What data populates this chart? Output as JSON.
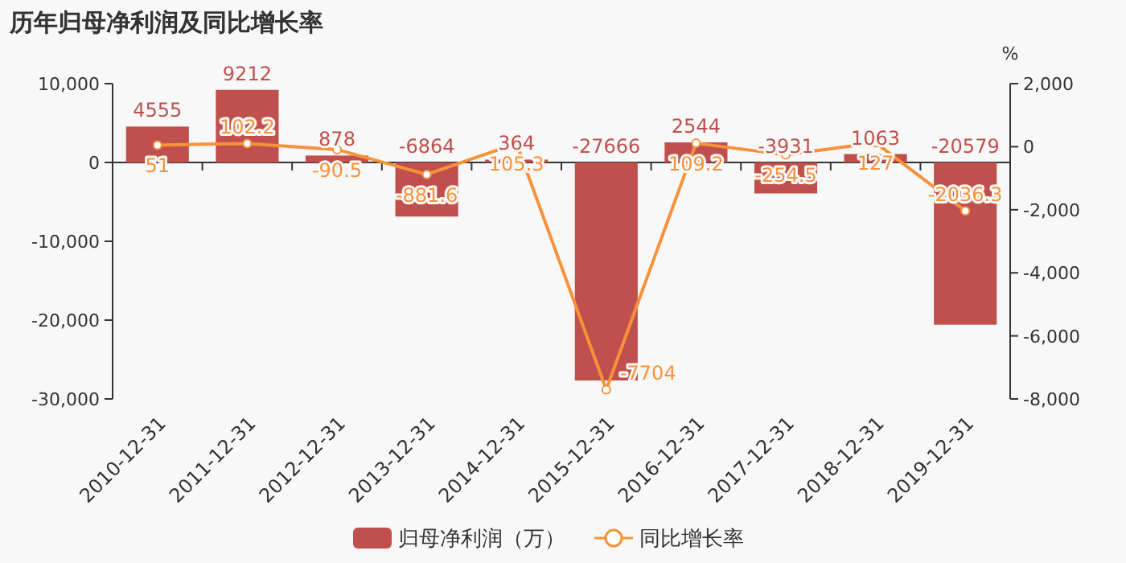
{
  "chart_data": {
    "type": "bar",
    "title": "历年归母净利润及同比增长率",
    "y2label": "%",
    "categories": [
      "2010-12-31",
      "2011-12-31",
      "2012-12-31",
      "2013-12-31",
      "2014-12-31",
      "2015-12-31",
      "2016-12-31",
      "2017-12-31",
      "2018-12-31",
      "2019-12-31"
    ],
    "series": [
      {
        "name": "归母净利润（万）",
        "color": "#c0504d",
        "values": [
          4555,
          9212,
          878,
          -6864,
          364,
          -27666,
          2544,
          -3931,
          1063,
          -20579
        ]
      },
      {
        "name": "同比增长率",
        "type": "line",
        "axis": "y2",
        "color": "#f7923a",
        "marker": "circle",
        "values": [
          51,
          102.2,
          -90.5,
          -881.6,
          105.3,
          -7704,
          109.2,
          -254.5,
          127,
          -2036.3
        ]
      }
    ],
    "ylim": [
      -30000,
      10000
    ],
    "yticks": [
      {
        "value": -30000,
        "label": "-30,000"
      },
      {
        "value": -20000,
        "label": "-20,000"
      },
      {
        "value": -10000,
        "label": "-10,000"
      },
      0,
      {
        "value": 10000,
        "label": "10,000"
      }
    ],
    "y2lim": [
      -8000,
      2000
    ],
    "y2ticks": [
      {
        "value": -8000,
        "label": "-8,000"
      },
      {
        "value": -6000,
        "label": "-6,000"
      },
      {
        "value": -4000,
        "label": "-4,000"
      },
      {
        "value": -2000,
        "label": "-2,000"
      },
      0,
      {
        "value": 2000,
        "label": "2,000"
      }
    ],
    "data_labels": true,
    "legend": "bottom"
  }
}
